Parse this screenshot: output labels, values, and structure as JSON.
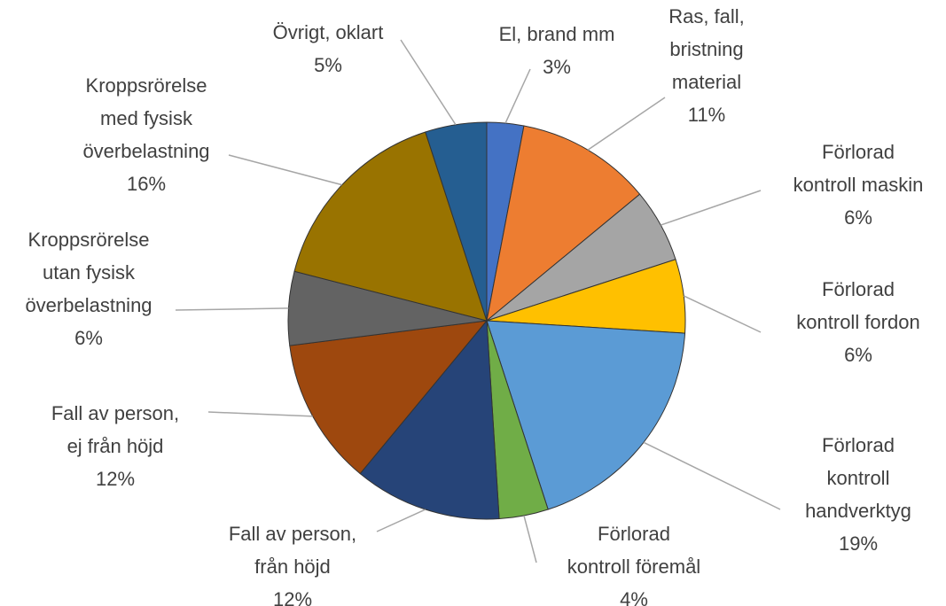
{
  "chart_data": {
    "type": "pie",
    "categories": [
      "El, brand mm",
      "Ras, fall,\nbristning\nmaterial",
      "Förlorad\nkontroll maskin",
      "Förlorad\nkontroll fordon",
      "Förlorad\nkontroll\nhandverktyg",
      "Förlorad\nkontroll föremål",
      "Fall av person,\nfrån höjd",
      "Fall av person,\nej från höjd",
      "Kroppsrörelse\nutan fysisk\növerbelastning",
      "Kroppsrörelse\nmed fysisk\növerbelastning",
      "Övrigt, oklart"
    ],
    "values": [
      3,
      11,
      6,
      6,
      19,
      4,
      12,
      12,
      6,
      16,
      5
    ],
    "value_labels": [
      "3%",
      "11%",
      "6%",
      "6%",
      "19%",
      "4%",
      "12%",
      "12%",
      "6%",
      "16%",
      "5%"
    ],
    "colors": [
      "#4472c4",
      "#ed7d31",
      "#a5a5a5",
      "#ffc000",
      "#5b9bd5",
      "#70ad47",
      "#264478",
      "#9e480e",
      "#636363",
      "#997300",
      "#255e91"
    ]
  }
}
